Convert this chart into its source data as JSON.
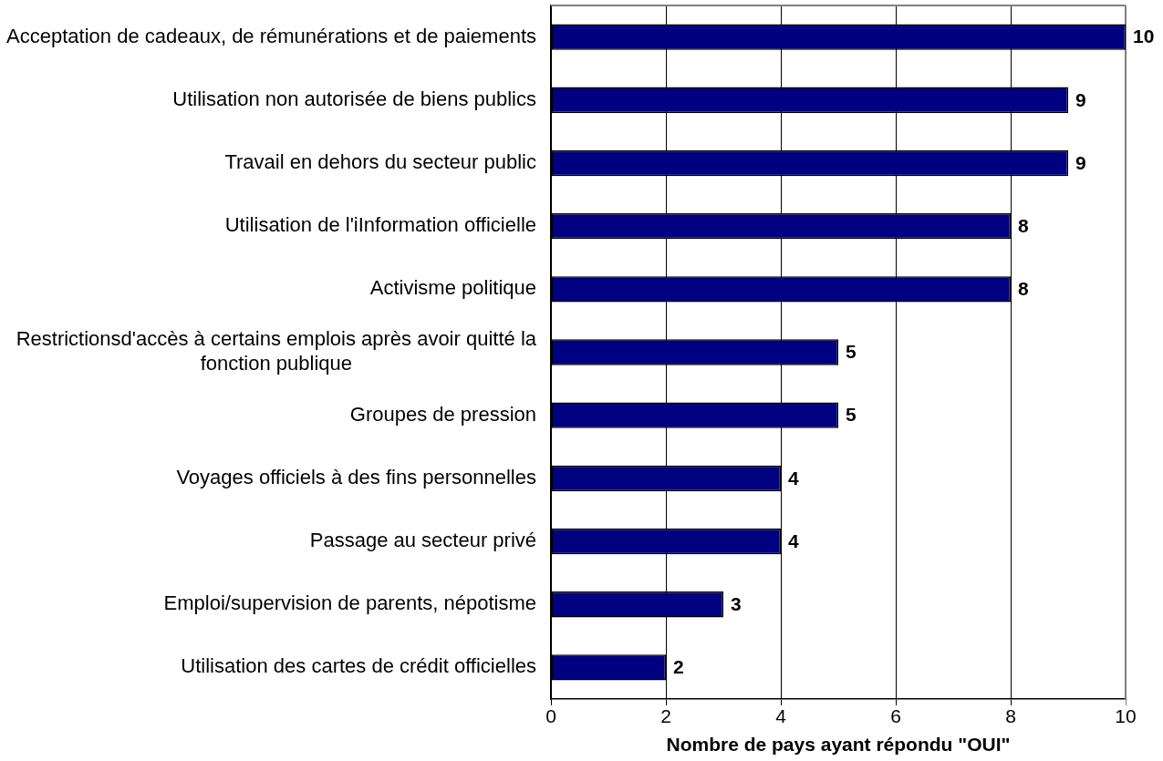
{
  "chart_data": {
    "type": "bar",
    "orientation": "horizontal",
    "xlabel": "Nombre de pays ayant répondu \"OUI\"",
    "categories": [
      "Acceptation de cadeaux, de rémunérations et de paiements",
      "Utilisation non autorisée de biens publics",
      "Travail en dehors du secteur public",
      "Utilisation de l'iInformation officielle",
      "Activisme politique",
      "Restrictionsd'accès à certains emplois après avoir quitté la fonction publique",
      "Groupes de pression",
      "Voyages officiels à des fins personnelles",
      "Passage au secteur privé",
      "Emploi/supervision de parents, népotisme",
      "Utilisation des cartes de crédit officielles"
    ],
    "values": [
      10,
      9,
      9,
      8,
      8,
      5,
      5,
      4,
      4,
      3,
      2
    ],
    "color": "#000080",
    "xlim": [
      0,
      10
    ],
    "xticks": [
      0,
      2,
      4,
      6,
      8,
      10
    ],
    "grid": "x",
    "legend": false,
    "data_labels": true
  }
}
